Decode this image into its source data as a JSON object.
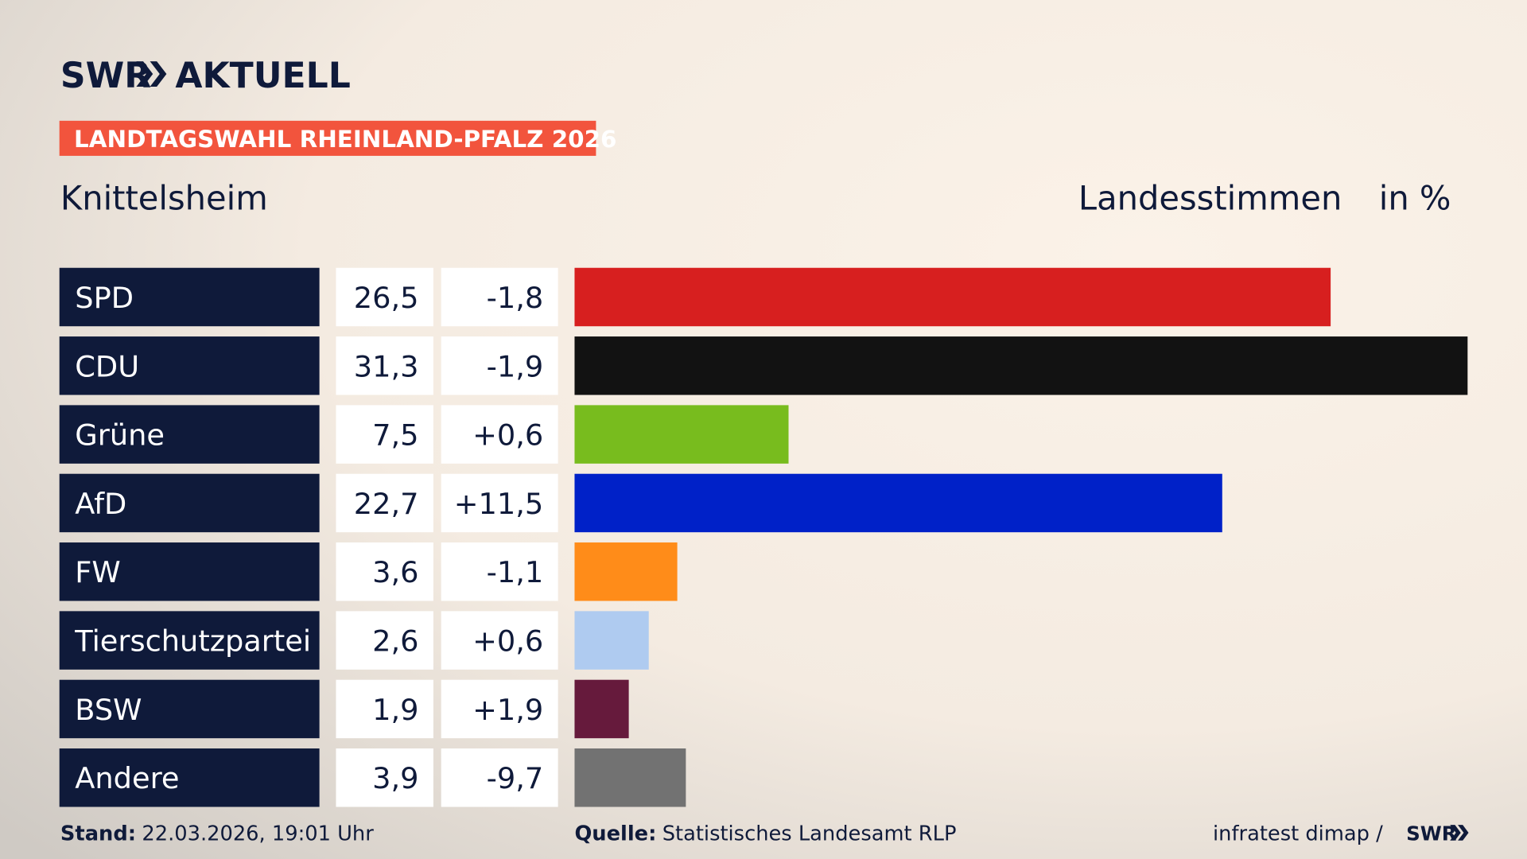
{
  "header": {
    "brand": "SWR",
    "brand_suffix": "AKTUELL",
    "banner": "LANDTAGSWAHL RHEINLAND-PFALZ 2026",
    "location": "Knittelsheim",
    "measure": "Landesstimmen",
    "unit": "in %"
  },
  "chart_data": {
    "type": "bar",
    "categories": [
      "SPD",
      "CDU",
      "Grüne",
      "AfD",
      "FW",
      "Tierschutzpartei",
      "BSW",
      "Andere"
    ],
    "values": [
      26.5,
      31.3,
      7.5,
      22.7,
      3.6,
      2.6,
      1.9,
      3.9
    ],
    "value_labels": [
      "26,5",
      "31,3",
      "7,5",
      "22,7",
      "3,6",
      "2,6",
      "1,9",
      "3,9"
    ],
    "changes": [
      -1.8,
      -1.9,
      0.6,
      11.5,
      -1.1,
      0.6,
      1.9,
      -9.7
    ],
    "change_labels": [
      "-1,8",
      "-1,9",
      "+0,6",
      "+11,5",
      "-1,1",
      "+0,6",
      "+1,9",
      "-9,7"
    ],
    "colors": [
      "#d71f1f",
      "#121212",
      "#78bc1e",
      "#0021c8",
      "#ff8c19",
      "#afcbf0",
      "#661a3c",
      "#727272"
    ]
  },
  "footer": {
    "stand_label": "Stand:",
    "stand": "22.03.2026, 19:01 Uhr",
    "source_label": "Quelle:",
    "source": "Statistisches Landesamt RLP",
    "credit": "infratest dimap /",
    "credit_brand": "SWR"
  }
}
